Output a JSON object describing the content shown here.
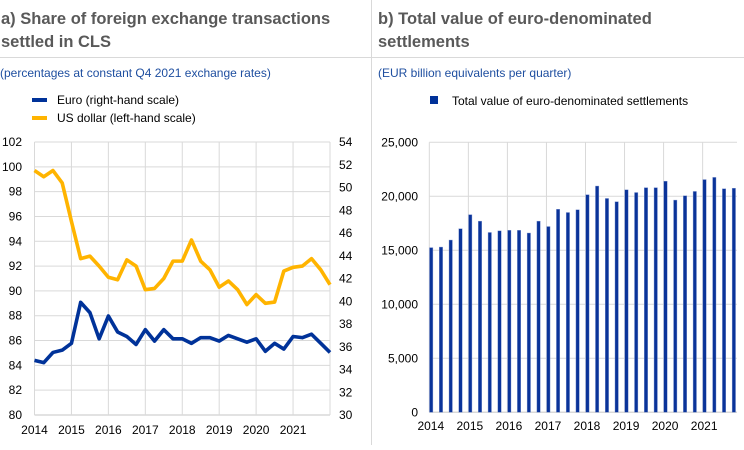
{
  "panels": {
    "a": {
      "title_lines": [
        "a) Share of foreign exchange transactions",
        "settled in CLS"
      ],
      "subtitle": "(percentages at constant Q4 2021 exchange rates)",
      "legend": [
        {
          "label": "Euro (right-hand scale)",
          "color": "#003299",
          "marker": "line"
        },
        {
          "label": "US dollar (left-hand scale)",
          "color": "#ffb400",
          "marker": "line"
        }
      ]
    },
    "b": {
      "title_lines": [
        "b) Total value of euro-denominated",
        "settlements"
      ],
      "subtitle": "(EUR billion equivalents per quarter)",
      "legend": [
        {
          "label": "Total value of euro-denominated settlements",
          "color": "#003299",
          "marker": "square"
        }
      ]
    }
  },
  "colors": {
    "title": "#595959",
    "subtitle": "#1f4fa0",
    "grid": "#d9d9d9",
    "euro": "#003299",
    "usd": "#ffb400",
    "bars": "#0a3399"
  },
  "chart_data": [
    {
      "type": "line",
      "title": "a) Share of foreign exchange transactions settled in CLS",
      "subtitle": "(percentages at constant Q4 2021 exchange rates)",
      "xlabel": "",
      "xlim": [
        2014,
        2022
      ],
      "x_ticks": [
        2014,
        2015,
        2016,
        2017,
        2018,
        2019,
        2020,
        2021
      ],
      "x_tick_labels": [
        "2014",
        "2015",
        "2016",
        "2017",
        "2018",
        "2019",
        "2020",
        "2021"
      ],
      "y_left": {
        "ylim": [
          80,
          102
        ],
        "ticks": [
          80,
          82,
          84,
          86,
          88,
          90,
          92,
          94,
          96,
          98,
          100,
          102
        ],
        "tick_labels": [
          "80",
          "82",
          "84",
          "86",
          "88",
          "90",
          "92",
          "94",
          "96",
          "98",
          "100",
          "102"
        ]
      },
      "y_right": {
        "ylim": [
          30,
          54
        ],
        "ticks": [
          30,
          32,
          34,
          36,
          38,
          40,
          42,
          44,
          46,
          48,
          50,
          52,
          54
        ],
        "tick_labels": [
          "30",
          "32",
          "34",
          "36",
          "38",
          "40",
          "42",
          "44",
          "46",
          "48",
          "50",
          "52",
          "54"
        ]
      },
      "grid": true,
      "legend": "top-left",
      "x": [
        2014.0,
        2014.25,
        2014.5,
        2014.75,
        2015.0,
        2015.25,
        2015.5,
        2015.75,
        2016.0,
        2016.25,
        2016.5,
        2016.75,
        2017.0,
        2017.25,
        2017.5,
        2017.75,
        2018.0,
        2018.25,
        2018.5,
        2018.75,
        2019.0,
        2019.25,
        2019.5,
        2019.75,
        2020.0,
        2020.25,
        2020.5,
        2020.75,
        2021.0,
        2021.25,
        2021.5,
        2021.75,
        2022.0
      ],
      "series": [
        {
          "name": "Euro (right-hand scale)",
          "axis": "right",
          "color": "#003299",
          "values": [
            34.8,
            34.6,
            35.5,
            35.7,
            36.3,
            39.9,
            39.0,
            36.7,
            38.7,
            37.3,
            36.9,
            36.2,
            37.5,
            36.5,
            37.5,
            36.7,
            36.7,
            36.3,
            36.8,
            36.8,
            36.5,
            37.0,
            36.7,
            36.4,
            36.7,
            35.6,
            36.3,
            35.8,
            36.9,
            36.8,
            37.1,
            36.3,
            35.5
          ]
        },
        {
          "name": "US dollar (left-hand scale)",
          "axis": "left",
          "color": "#ffb400",
          "values": [
            99.7,
            99.2,
            99.7,
            98.7,
            95.6,
            92.6,
            92.8,
            92.0,
            91.1,
            90.9,
            92.5,
            92.0,
            90.1,
            90.2,
            91.0,
            92.4,
            92.4,
            94.1,
            92.4,
            91.7,
            90.3,
            90.8,
            90.1,
            88.9,
            89.7,
            89.0,
            89.1,
            91.6,
            91.9,
            92.0,
            92.6,
            91.7,
            90.5
          ]
        }
      ]
    },
    {
      "type": "bar",
      "title": "b) Total value of euro-denominated settlements",
      "subtitle": "(EUR billion equivalents per quarter)",
      "xlabel": "",
      "ylabel": "",
      "ylim": [
        0,
        25000
      ],
      "y_ticks": [
        0,
        5000,
        10000,
        15000,
        20000,
        25000
      ],
      "y_tick_labels": [
        "0",
        "5,000",
        "10,000",
        "15,000",
        "20,000",
        "25,000"
      ],
      "x_ticks": [
        2014,
        2015,
        2016,
        2017,
        2018,
        2019,
        2020,
        2021
      ],
      "x_tick_labels": [
        "2014",
        "2015",
        "2016",
        "2017",
        "2018",
        "2019",
        "2020",
        "2021"
      ],
      "grid": true,
      "legend": "top-center",
      "x": [
        2014.0,
        2014.25,
        2014.5,
        2014.75,
        2015.0,
        2015.25,
        2015.5,
        2015.75,
        2016.0,
        2016.25,
        2016.5,
        2016.75,
        2017.0,
        2017.25,
        2017.5,
        2017.75,
        2018.0,
        2018.25,
        2018.5,
        2018.75,
        2019.0,
        2019.25,
        2019.5,
        2019.75,
        2020.0,
        2020.25,
        2020.5,
        2020.75,
        2021.0,
        2021.25,
        2021.5,
        2021.75
      ],
      "series": [
        {
          "name": "Total value of euro-denominated settlements",
          "color": "#0a3399",
          "values": [
            15250,
            15300,
            15950,
            17000,
            18300,
            17700,
            16650,
            16800,
            16850,
            16850,
            16600,
            17700,
            17200,
            18800,
            18500,
            18750,
            20150,
            20950,
            19800,
            19500,
            20600,
            20350,
            20800,
            20800,
            21400,
            19650,
            20050,
            20450,
            21550,
            21750,
            20700,
            20750
          ]
        }
      ]
    }
  ]
}
